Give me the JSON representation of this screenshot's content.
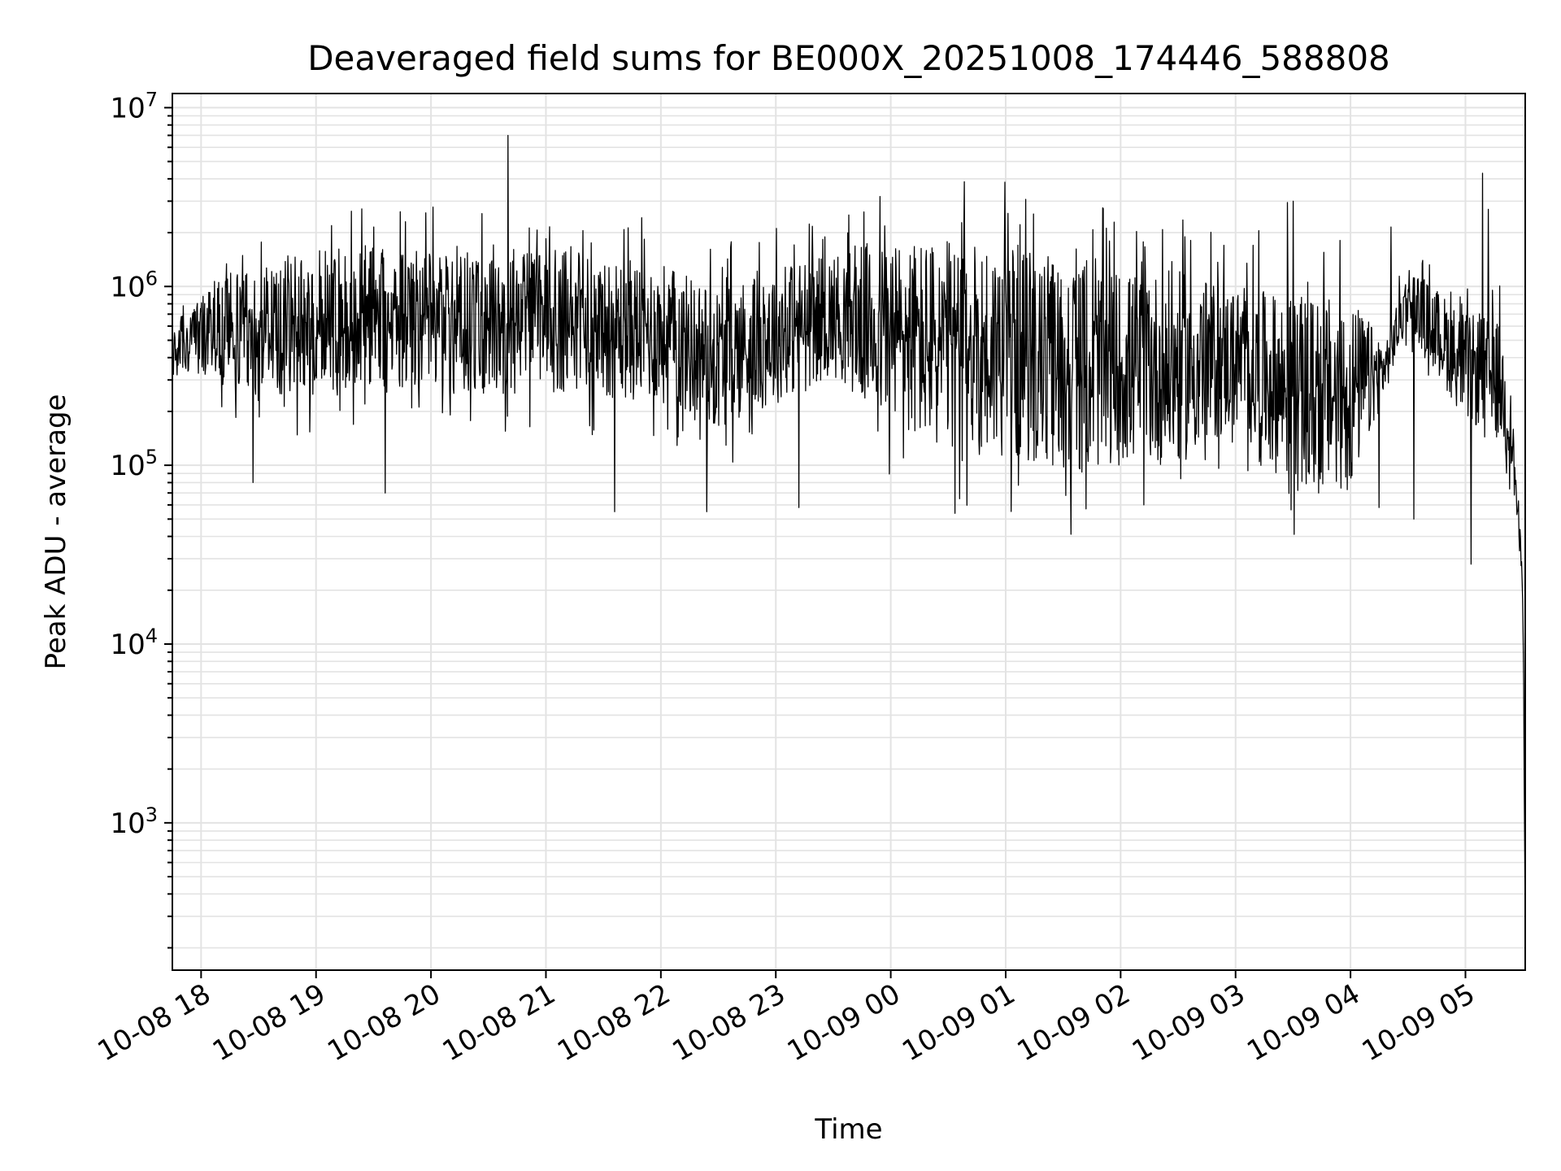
{
  "chart_data": {
    "type": "line",
    "title": "Deaveraged field sums for BE000X_20251008_174446_588808",
    "xlabel": "Time",
    "ylabel": "Peak ADU - average",
    "yscale": "log",
    "ylim": [
      150,
      12000000
    ],
    "xlim_hours_from_1008_18": [
      -0.25,
      11.52
    ],
    "grid": "on",
    "x_ticks": [
      {
        "label": "10-08 18",
        "hours": 0
      },
      {
        "label": "10-08 19",
        "hours": 1
      },
      {
        "label": "10-08 20",
        "hours": 2
      },
      {
        "label": "10-08 21",
        "hours": 3
      },
      {
        "label": "10-08 22",
        "hours": 4
      },
      {
        "label": "10-08 23",
        "hours": 5
      },
      {
        "label": "10-09 00",
        "hours": 6
      },
      {
        "label": "10-09 01",
        "hours": 7
      },
      {
        "label": "10-09 02",
        "hours": 8
      },
      {
        "label": "10-09 03",
        "hours": 9
      },
      {
        "label": "10-09 04",
        "hours": 10
      },
      {
        "label": "10-09 05",
        "hours": 11
      }
    ],
    "y_ticks": [
      {
        "base": "10",
        "exp": "3",
        "value": 1000
      },
      {
        "base": "10",
        "exp": "4",
        "value": 10000
      },
      {
        "base": "10",
        "exp": "5",
        "value": 100000
      },
      {
        "base": "10",
        "exp": "6",
        "value": 1000000
      },
      {
        "base": "10",
        "exp": "7",
        "value": 10000000
      }
    ],
    "series": [
      {
        "name": "Peak ADU - average",
        "color": "#000000",
        "envelope_hours": [
          -0.25,
          0.25,
          0.5,
          1.0,
          1.5,
          2.0,
          2.5,
          3.0,
          3.5,
          4.0,
          4.5,
          5.0,
          5.5,
          6.0,
          6.5,
          7.0,
          7.5,
          8.0,
          8.5,
          9.0,
          9.5,
          10.0,
          10.3,
          10.5,
          11.0,
          11.3,
          11.4,
          11.45,
          11.5,
          11.52
        ],
        "median_values": [
          450000,
          600000,
          550000,
          650000,
          700000,
          650000,
          600000,
          650000,
          600000,
          550000,
          400000,
          550000,
          700000,
          550000,
          450000,
          450000,
          350000,
          350000,
          350000,
          400000,
          250000,
          250000,
          350000,
          900000,
          350000,
          300000,
          150000,
          60000,
          20000,
          300
        ],
        "spread_factor": [
          1.4,
          2.0,
          2.5,
          2.5,
          2.5,
          2.5,
          2.5,
          2.5,
          2.5,
          2.5,
          2.5,
          2.5,
          2.2,
          3.5,
          4.0,
          4.0,
          4.0,
          3.5,
          3.5,
          2.5,
          3.5,
          3.5,
          1.4,
          1.5,
          2.0,
          2.2,
          1.6,
          1.4,
          1.2,
          1.2
        ],
        "spikes": [
          {
            "hours": 2.67,
            "value": 7000000
          },
          {
            "hours": 11.15,
            "value": 4300000
          },
          {
            "hours": 9.5,
            "value": 3000000
          },
          {
            "hours": 11.2,
            "value": 2700000
          },
          {
            "hours": 1.78,
            "value": 2300000
          },
          {
            "hours": 1.5,
            "value": 2150000
          },
          {
            "hours": 9.45,
            "value": 2950000
          },
          {
            "hours": 9.2,
            "value": 2050000
          },
          {
            "hours": 10.35,
            "value": 2150000
          },
          {
            "hours": 8.9,
            "value": 1700000
          },
          {
            "hours": 11.05,
            "value": 1900000
          },
          {
            "hours": 3.0,
            "value": 1850000
          }
        ],
        "dips": [
          {
            "hours": 0.45,
            "value": 80000
          },
          {
            "hours": 1.6,
            "value": 70000
          },
          {
            "hours": 3.6,
            "value": 55000
          },
          {
            "hours": 4.4,
            "value": 55000
          },
          {
            "hours": 5.2,
            "value": 58000
          },
          {
            "hours": 6.6,
            "value": 65000
          },
          {
            "hours": 7.7,
            "value": 57000
          },
          {
            "hours": 8.2,
            "value": 60000
          },
          {
            "hours": 10.25,
            "value": 58000
          },
          {
            "hours": 10.55,
            "value": 50000
          },
          {
            "hours": 11.05,
            "value": 28000
          }
        ]
      }
    ]
  }
}
